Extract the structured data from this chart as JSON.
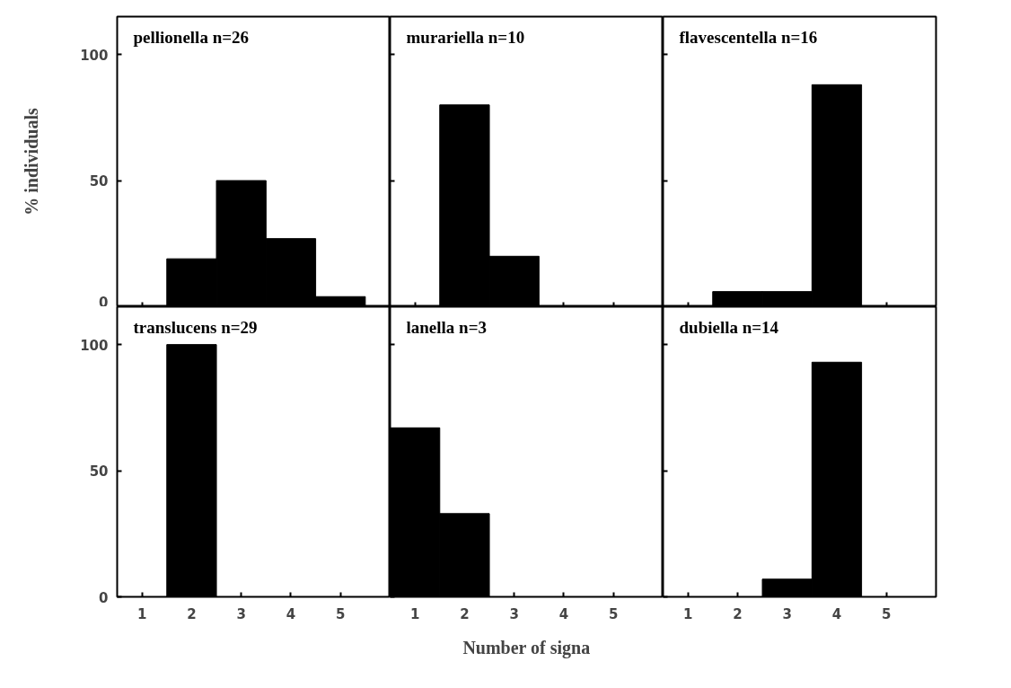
{
  "chart_data": [
    {
      "type": "bar",
      "title": "pellionella  n=26",
      "categories": [
        "1",
        "2",
        "3",
        "4",
        "5"
      ],
      "values": [
        0,
        19,
        50,
        27,
        4
      ],
      "color": "#000000",
      "ylim": [
        0,
        115
      ],
      "yticks": [
        0,
        50,
        100
      ],
      "tick_labels": "y",
      "ylabel": "% individuals"
    },
    {
      "type": "bar",
      "title": "murariella  n=10",
      "categories": [
        "1",
        "2",
        "3",
        "4",
        "5"
      ],
      "values": [
        0,
        80,
        20,
        0,
        0
      ],
      "color": "#000000",
      "ylim": [
        0,
        115
      ],
      "yticks": [
        0,
        50,
        100
      ],
      "tick_labels": false
    },
    {
      "type": "bar",
      "title": "flavescentella  n=16",
      "categories": [
        "1",
        "2",
        "3",
        "4",
        "5"
      ],
      "values": [
        0,
        6,
        6,
        88,
        0
      ],
      "color": "#000000",
      "ylim": [
        0,
        115
      ],
      "yticks": [
        0,
        50,
        100
      ],
      "tick_labels": false
    },
    {
      "type": "bar",
      "title": "translucens  n=29",
      "categories": [
        "1",
        "2",
        "3",
        "4",
        "5"
      ],
      "values": [
        0,
        100,
        0,
        0,
        0
      ],
      "color": "#000000",
      "ylim": [
        0,
        115
      ],
      "yticks": [
        0,
        50,
        100
      ]
    },
    {
      "type": "bar",
      "title": "lanella  n=3",
      "categories": [
        "1",
        "2",
        "3",
        "4",
        "5"
      ],
      "values": [
        67,
        33,
        0,
        0,
        0
      ],
      "color": "#000000",
      "ylim": [
        0,
        115
      ],
      "yticks": [
        0,
        50,
        100
      ],
      "tick_labels": "x",
      "xlabel": "Number of signa"
    },
    {
      "type": "bar",
      "title": "dubiella  n=14",
      "categories": [
        "1",
        "2",
        "3",
        "4",
        "5"
      ],
      "values": [
        0,
        0,
        7,
        93,
        0
      ],
      "color": "#000000",
      "ylim": [
        0,
        115
      ],
      "yticks": [
        0,
        50,
        100
      ],
      "tick_labels": "x"
    }
  ]
}
